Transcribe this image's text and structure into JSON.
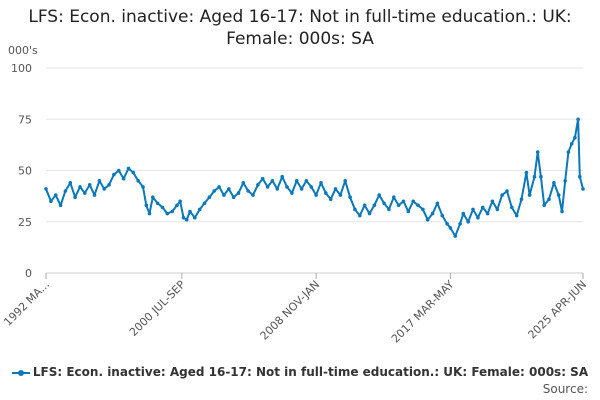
{
  "title": "LFS: Econ. inactive: Aged 16-17: Not in full-time education.: UK: Female: 000s: SA",
  "unit_label": "000's",
  "source_label": "Source:",
  "legend": {
    "label": "LFS: Econ. inactive: Aged 16-17: Not in full-time education.: UK: Female: 000s: SA",
    "color": "#0b78b8"
  },
  "chart_data": {
    "type": "line",
    "y_ticks": [
      0,
      25,
      50,
      75,
      100
    ],
    "ylim": [
      0,
      100
    ],
    "x_tick_labels": [
      "1992 MA...",
      "2000 JUL-SEP",
      "2008 NOV-JAN",
      "2017 MAR-MAY",
      "2025 APR-JUN"
    ],
    "x_tick_years": [
      1992.2,
      2000.6,
      2008.9,
      2017.2,
      2025.4
    ],
    "xlim": [
      1992.2,
      2025.4
    ],
    "grid": true,
    "legend_position": "bottom",
    "series": [
      {
        "name": "LFS: Econ. inactive: Aged 16-17: Not in full-time education.: UK: Female: 000s: SA",
        "color": "#0b78b8",
        "points": [
          [
            1992.2,
            41
          ],
          [
            1992.5,
            35
          ],
          [
            1992.8,
            38
          ],
          [
            1993.1,
            33
          ],
          [
            1993.4,
            40
          ],
          [
            1993.7,
            44
          ],
          [
            1994.0,
            37
          ],
          [
            1994.3,
            42
          ],
          [
            1994.6,
            39
          ],
          [
            1994.9,
            43
          ],
          [
            1995.2,
            38
          ],
          [
            1995.5,
            45
          ],
          [
            1995.8,
            41
          ],
          [
            1996.1,
            43
          ],
          [
            1996.4,
            48
          ],
          [
            1996.7,
            50
          ],
          [
            1997.0,
            46
          ],
          [
            1997.3,
            51
          ],
          [
            1997.6,
            49
          ],
          [
            1997.9,
            45
          ],
          [
            1998.2,
            42
          ],
          [
            1998.4,
            33
          ],
          [
            1998.6,
            29
          ],
          [
            1998.8,
            37
          ],
          [
            1999.1,
            34
          ],
          [
            1999.4,
            32
          ],
          [
            1999.7,
            29
          ],
          [
            2000.0,
            30
          ],
          [
            2000.3,
            33
          ],
          [
            2000.5,
            35
          ],
          [
            2000.7,
            27
          ],
          [
            2000.9,
            26
          ],
          [
            2001.1,
            30
          ],
          [
            2001.4,
            27
          ],
          [
            2001.7,
            31
          ],
          [
            2002.0,
            34
          ],
          [
            2002.3,
            37
          ],
          [
            2002.6,
            40
          ],
          [
            2002.9,
            42
          ],
          [
            2003.2,
            38
          ],
          [
            2003.5,
            41
          ],
          [
            2003.8,
            37
          ],
          [
            2004.1,
            39
          ],
          [
            2004.4,
            44
          ],
          [
            2004.7,
            40
          ],
          [
            2005.0,
            38
          ],
          [
            2005.3,
            43
          ],
          [
            2005.6,
            46
          ],
          [
            2005.9,
            42
          ],
          [
            2006.2,
            45
          ],
          [
            2006.5,
            41
          ],
          [
            2006.8,
            47
          ],
          [
            2007.1,
            42
          ],
          [
            2007.4,
            39
          ],
          [
            2007.7,
            45
          ],
          [
            2008.0,
            41
          ],
          [
            2008.3,
            45
          ],
          [
            2008.6,
            42
          ],
          [
            2008.9,
            38
          ],
          [
            2009.2,
            44
          ],
          [
            2009.5,
            39
          ],
          [
            2009.8,
            36
          ],
          [
            2010.1,
            41
          ],
          [
            2010.4,
            38
          ],
          [
            2010.7,
            45
          ],
          [
            2011.0,
            37
          ],
          [
            2011.3,
            31
          ],
          [
            2011.6,
            28
          ],
          [
            2011.9,
            33
          ],
          [
            2012.2,
            29
          ],
          [
            2012.5,
            33
          ],
          [
            2012.8,
            38
          ],
          [
            2013.1,
            34
          ],
          [
            2013.4,
            31
          ],
          [
            2013.7,
            37
          ],
          [
            2014.0,
            33
          ],
          [
            2014.3,
            35
          ],
          [
            2014.6,
            30
          ],
          [
            2014.9,
            35
          ],
          [
            2015.2,
            33
          ],
          [
            2015.5,
            31
          ],
          [
            2015.8,
            26
          ],
          [
            2016.1,
            29
          ],
          [
            2016.4,
            34
          ],
          [
            2016.7,
            28
          ],
          [
            2017.0,
            24
          ],
          [
            2017.2,
            22
          ],
          [
            2017.5,
            18
          ],
          [
            2017.8,
            24
          ],
          [
            2018.0,
            29
          ],
          [
            2018.3,
            25
          ],
          [
            2018.6,
            31
          ],
          [
            2018.9,
            27
          ],
          [
            2019.2,
            32
          ],
          [
            2019.5,
            29
          ],
          [
            2019.8,
            35
          ],
          [
            2020.1,
            31
          ],
          [
            2020.4,
            38
          ],
          [
            2020.7,
            40
          ],
          [
            2021.0,
            32
          ],
          [
            2021.3,
            28
          ],
          [
            2021.6,
            36
          ],
          [
            2021.9,
            49
          ],
          [
            2022.1,
            38
          ],
          [
            2022.4,
            47
          ],
          [
            2022.6,
            59
          ],
          [
            2022.8,
            47
          ],
          [
            2023.0,
            33
          ],
          [
            2023.3,
            36
          ],
          [
            2023.6,
            44
          ],
          [
            2023.9,
            38
          ],
          [
            2024.1,
            30
          ],
          [
            2024.3,
            45
          ],
          [
            2024.5,
            59
          ],
          [
            2024.7,
            63
          ],
          [
            2024.9,
            66
          ],
          [
            2025.1,
            75
          ],
          [
            2025.2,
            47
          ],
          [
            2025.4,
            41
          ]
        ]
      }
    ]
  }
}
